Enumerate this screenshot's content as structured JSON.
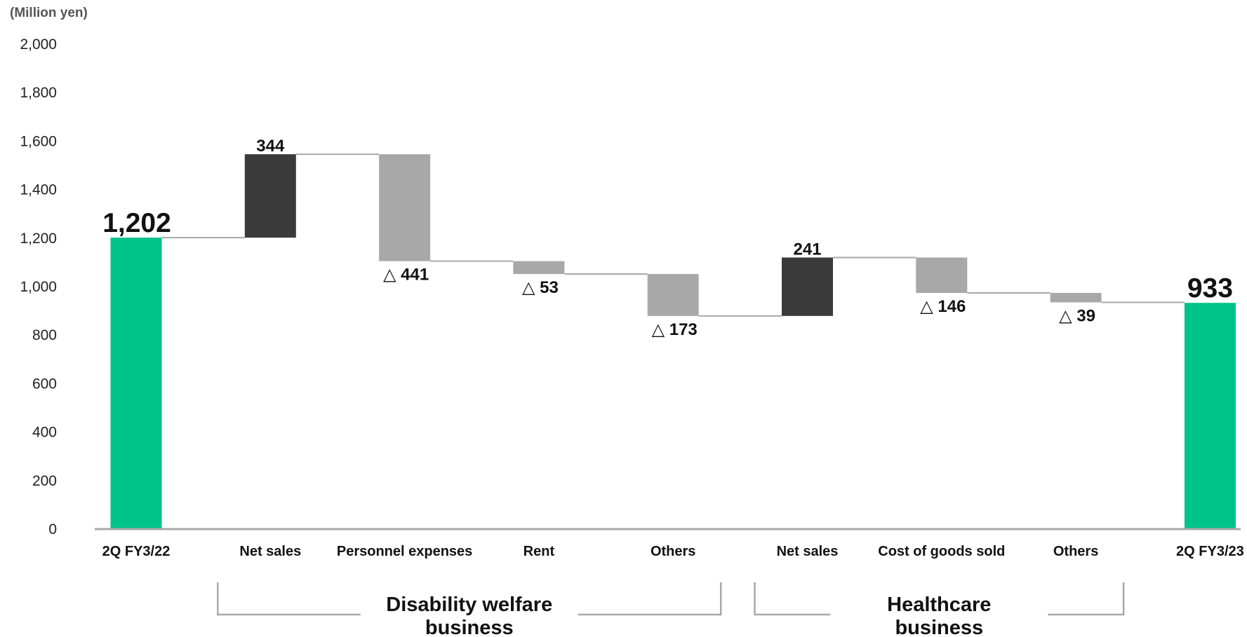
{
  "chart_data": {
    "type": "bar",
    "subtype": "waterfall",
    "unit_label": "(Million yen)",
    "ylim": [
      0,
      2000
    ],
    "yticks": [
      "0",
      "200",
      "400",
      "600",
      "800",
      "1,000",
      "1,200",
      "1,400",
      "1,600",
      "1,800",
      "2,000"
    ],
    "grid": false,
    "categories": [
      "2Q FY3/22",
      "Net sales",
      "Personnel expenses",
      "Rent",
      "Others",
      "Net sales",
      "Cost of goods sold",
      "Others",
      "2Q FY3/23"
    ],
    "bars": [
      {
        "kind": "total",
        "start": 0,
        "end": 1202,
        "label": "1,202"
      },
      {
        "kind": "increase",
        "start": 1202,
        "end": 1546,
        "label": "344"
      },
      {
        "kind": "decrease",
        "start": 1546,
        "end": 1105,
        "label": "△ 441"
      },
      {
        "kind": "decrease",
        "start": 1105,
        "end": 1052,
        "label": "△ 53"
      },
      {
        "kind": "decrease",
        "start": 1052,
        "end": 879,
        "label": "△ 173"
      },
      {
        "kind": "increase",
        "start": 879,
        "end": 1120,
        "label": "241"
      },
      {
        "kind": "decrease",
        "start": 1120,
        "end": 974,
        "label": "△ 146"
      },
      {
        "kind": "decrease",
        "start": 974,
        "end": 935,
        "label": "△ 39"
      },
      {
        "kind": "total",
        "start": 0,
        "end": 933,
        "label": "933"
      }
    ],
    "groups": [
      {
        "label_lines": [
          "Disability welfare",
          "business"
        ],
        "from": 1,
        "to": 4
      },
      {
        "label_lines": [
          "Healthcare",
          "business"
        ],
        "from": 5,
        "to": 7
      }
    ],
    "colors": {
      "total": "#00c389",
      "increase": "#3a3a3a",
      "decrease": "#a8a8a8",
      "connector": "#a8a8a8",
      "axis": "#a8a8a8"
    }
  }
}
